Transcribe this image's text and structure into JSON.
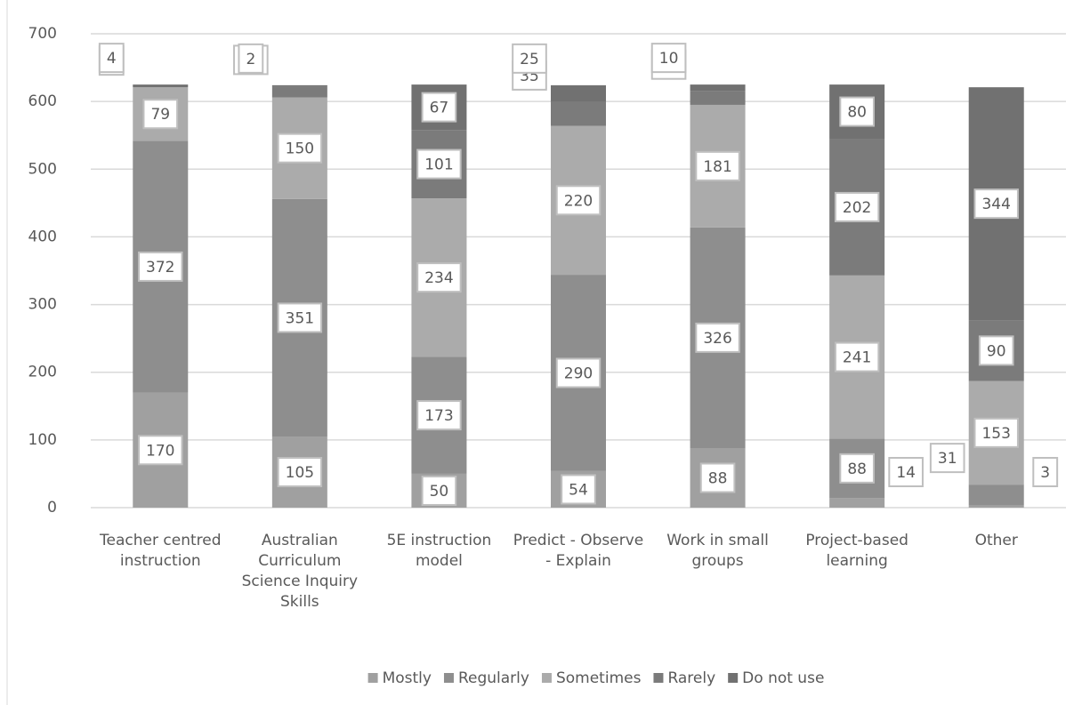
{
  "chart_data": {
    "type": "stacked_bar",
    "categories": [
      "Teacher centred instruction",
      "Australian Curriculum Science Inquiry Skills",
      "5E instruction model",
      "Predict - Observe - Explain",
      "Work in small groups",
      "Project-based learning",
      "Other"
    ],
    "series": [
      {
        "name": "Mostly",
        "color": "#a0a0a0",
        "values": [
          170,
          105,
          50,
          54,
          88,
          14,
          3
        ]
      },
      {
        "name": "Regularly",
        "color": "#8e8e8e",
        "values": [
          372,
          351,
          173,
          290,
          326,
          88,
          31
        ]
      },
      {
        "name": "Sometimes",
        "color": "#ababab",
        "values": [
          79,
          150,
          234,
          220,
          181,
          241,
          153
        ]
      },
      {
        "name": "Rarely",
        "color": "#7b7b7b",
        "values": [
          0,
          16,
          101,
          35,
          20,
          202,
          90
        ]
      },
      {
        "name": "Do not use",
        "color": "#717171",
        "values": [
          4,
          2,
          67,
          25,
          10,
          80,
          344
        ]
      }
    ],
    "ylim": [
      0,
      700
    ],
    "yticks": [
      0,
      100,
      200,
      300,
      400,
      500,
      600,
      700
    ],
    "grid": true,
    "legend": "bottom"
  }
}
